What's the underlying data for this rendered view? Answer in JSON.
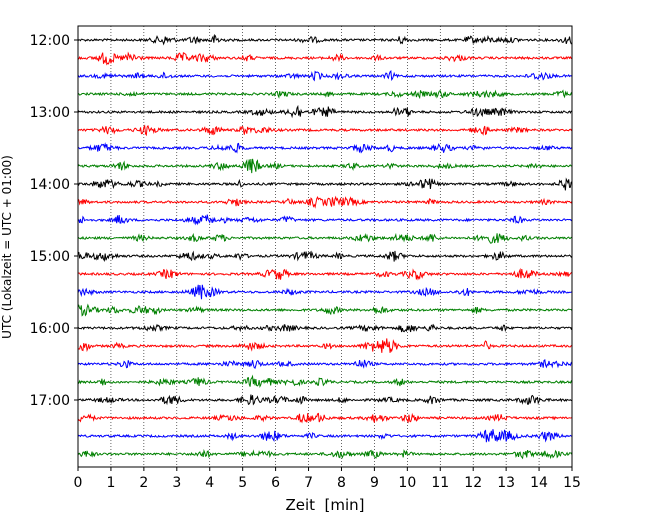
{
  "chart_data": {
    "type": "line",
    "title": "",
    "xlabel": "Zeit  [min]",
    "ylabel": "UTC (Lokalzeit = UTC + 01:00)",
    "xlim": [
      0,
      15
    ],
    "x_ticks": [
      0,
      1,
      2,
      3,
      4,
      5,
      6,
      7,
      8,
      9,
      10,
      11,
      12,
      13,
      14,
      15
    ],
    "y_tick_labels": [
      "12:00",
      "13:00",
      "14:00",
      "15:00",
      "16:00",
      "17:00"
    ],
    "grid": "vertical dotted lines at each minute",
    "trace_interval_min": 15,
    "trace_colors": [
      "#000000",
      "#ff0000",
      "#0000ff",
      "#008000"
    ],
    "traces": [
      {
        "start": "12:00",
        "color": "#000000"
      },
      {
        "start": "12:15",
        "color": "#ff0000"
      },
      {
        "start": "12:30",
        "color": "#0000ff"
      },
      {
        "start": "12:45",
        "color": "#008000"
      },
      {
        "start": "13:00",
        "color": "#000000"
      },
      {
        "start": "13:15",
        "color": "#ff0000"
      },
      {
        "start": "13:30",
        "color": "#0000ff"
      },
      {
        "start": "13:45",
        "color": "#008000"
      },
      {
        "start": "14:00",
        "color": "#000000"
      },
      {
        "start": "14:15",
        "color": "#ff0000"
      },
      {
        "start": "14:30",
        "color": "#0000ff"
      },
      {
        "start": "14:45",
        "color": "#008000"
      },
      {
        "start": "15:00",
        "color": "#000000"
      },
      {
        "start": "15:15",
        "color": "#ff0000"
      },
      {
        "start": "15:30",
        "color": "#0000ff"
      },
      {
        "start": "15:45",
        "color": "#008000"
      },
      {
        "start": "16:00",
        "color": "#000000"
      },
      {
        "start": "16:15",
        "color": "#ff0000"
      },
      {
        "start": "16:30",
        "color": "#0000ff"
      },
      {
        "start": "16:45",
        "color": "#008000"
      },
      {
        "start": "17:00",
        "color": "#000000"
      },
      {
        "start": "17:15",
        "color": "#ff0000"
      },
      {
        "start": "17:30",
        "color": "#0000ff"
      },
      {
        "start": "17:45",
        "color": "#008000"
      }
    ]
  }
}
